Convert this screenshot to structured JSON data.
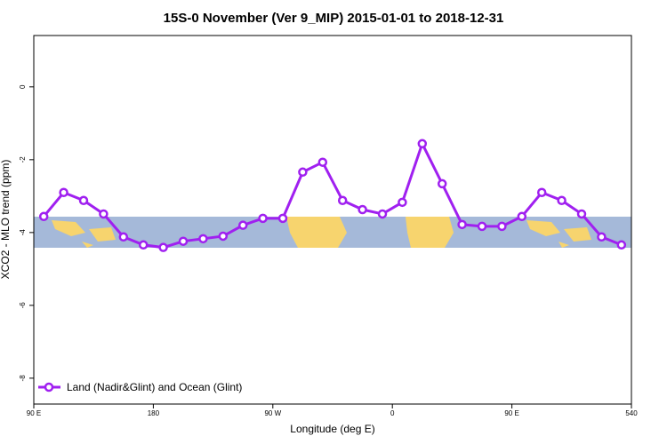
{
  "chart_data": {
    "type": "line",
    "title": "15S-0 November (Ver 9_MIP)   2015-01-01 to 2018-12-31",
    "x_label": "Longitude (deg E)",
    "y_label": "XCO2 - MLO trend (ppm)",
    "x": [
      97.5,
      112.5,
      127.5,
      142.5,
      157.5,
      172.5,
      187.5,
      202.5,
      217.5,
      232.5,
      247.5,
      262.5,
      277.5,
      292.5,
      307.5,
      322.5,
      337.5,
      352.5,
      367.5,
      382.5,
      397.5,
      412.5,
      427.5,
      442.5,
      457.5,
      472.5,
      487.5,
      502.5,
      517.5,
      532.5
    ],
    "series": [
      {
        "name": "Land (Nadir&Glint) and Ocean (Glint)",
        "color": "#a020f0",
        "values": [
          -3.56,
          -2.9,
          -3.12,
          -3.49,
          -4.12,
          -4.34,
          -4.41,
          -4.24,
          -4.17,
          -4.1,
          -3.8,
          -3.61,
          -3.61,
          -2.34,
          -2.07,
          -3.12,
          -3.37,
          -3.49,
          -3.17,
          -1.56,
          -2.66,
          -3.78,
          -3.83,
          -3.83,
          -3.56,
          -2.9,
          -3.12,
          -3.49,
          -4.12,
          -4.34
        ]
      }
    ],
    "xlim": [
      90,
      540
    ],
    "xticks": [
      {
        "value": 90,
        "label": "90 E"
      },
      180,
      {
        "value": 270,
        "label": "90 W"
      },
      {
        "value": 360,
        "label": "0"
      },
      {
        "value": 450,
        "label": "90 E"
      },
      540
    ],
    "ylim": [
      -8.71,
      1.41
    ],
    "yticks": [
      0,
      -2,
      -4,
      -6,
      -8
    ],
    "legend": "bottom-left"
  }
}
